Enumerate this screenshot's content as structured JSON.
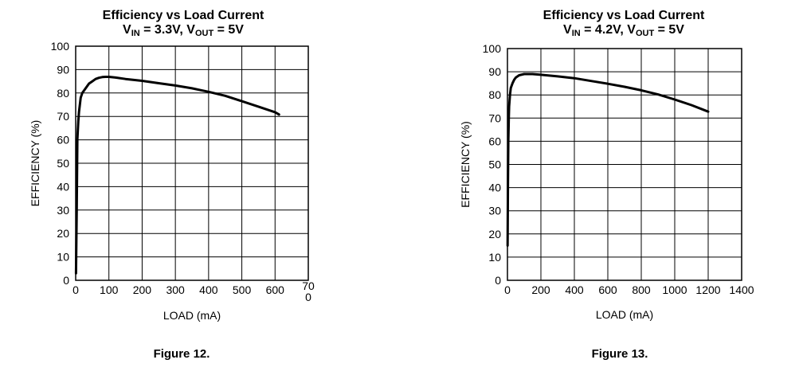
{
  "chart_data": [
    {
      "type": "line",
      "title": "Efficiency vs Load Current",
      "subtitle_parts": {
        "v": "V",
        "in": "IN",
        "vin_value": " = 3.3V, ",
        "v2": "V",
        "out": "OUT",
        "vout_value": " = 5V"
      },
      "caption": "Figure 12.",
      "xlabel": "LOAD (mA)",
      "ylabel": "EFFICIENCY (%)",
      "xlim": [
        0,
        700
      ],
      "ylim": [
        0,
        100
      ],
      "x_ticks": [
        "0",
        "100",
        "200",
        "300",
        "400",
        "500",
        "600",
        "70\n0"
      ],
      "y_ticks": [
        "0",
        "10",
        "20",
        "30",
        "40",
        "50",
        "60",
        "70",
        "80",
        "90",
        "100"
      ],
      "grid": true,
      "series": [
        {
          "x": [
            1,
            3,
            5,
            8,
            10,
            15,
            20,
            30,
            40,
            50,
            60,
            70,
            80,
            90,
            100,
            120,
            150,
            200,
            250,
            300,
            350,
            400,
            450,
            500,
            550,
            600,
            612
          ],
          "y": [
            3,
            30,
            60,
            68,
            72,
            78,
            80,
            82,
            84,
            85,
            86,
            86.5,
            86.8,
            86.9,
            86.9,
            86.6,
            86,
            85.2,
            84.2,
            83.2,
            82,
            80.5,
            78.8,
            76.5,
            74.2,
            71.8,
            70.8
          ]
        }
      ]
    },
    {
      "type": "line",
      "title": "Efficiency vs Load Current",
      "subtitle_parts": {
        "v": "V",
        "in": "IN",
        "vin_value": " = 4.2V, ",
        "v2": "V",
        "out": "OUT",
        "vout_value": " = 5V"
      },
      "caption": "Figure 13.",
      "xlabel": "LOAD (mA)",
      "ylabel": "EFFICIENCY (%)",
      "xlim": [
        0,
        1400
      ],
      "ylim": [
        0,
        100
      ],
      "x_ticks": [
        "0",
        "200",
        "400",
        "600",
        "800",
        "1000",
        "1200",
        "1400"
      ],
      "y_ticks": [
        "0",
        "10",
        "20",
        "30",
        "40",
        "50",
        "60",
        "70",
        "80",
        "90",
        "100"
      ],
      "grid": true,
      "series": [
        {
          "x": [
            1,
            3,
            5,
            8,
            10,
            15,
            20,
            30,
            40,
            50,
            70,
            100,
            150,
            200,
            300,
            400,
            500,
            600,
            700,
            800,
            900,
            1000,
            1100,
            1200
          ],
          "y": [
            15,
            40,
            60,
            70,
            75,
            80,
            83,
            85,
            86.5,
            87.5,
            88.5,
            89,
            89,
            88.7,
            88,
            87.2,
            86,
            84.8,
            83.5,
            82,
            80.2,
            78,
            75.6,
            72.8
          ]
        }
      ]
    }
  ]
}
